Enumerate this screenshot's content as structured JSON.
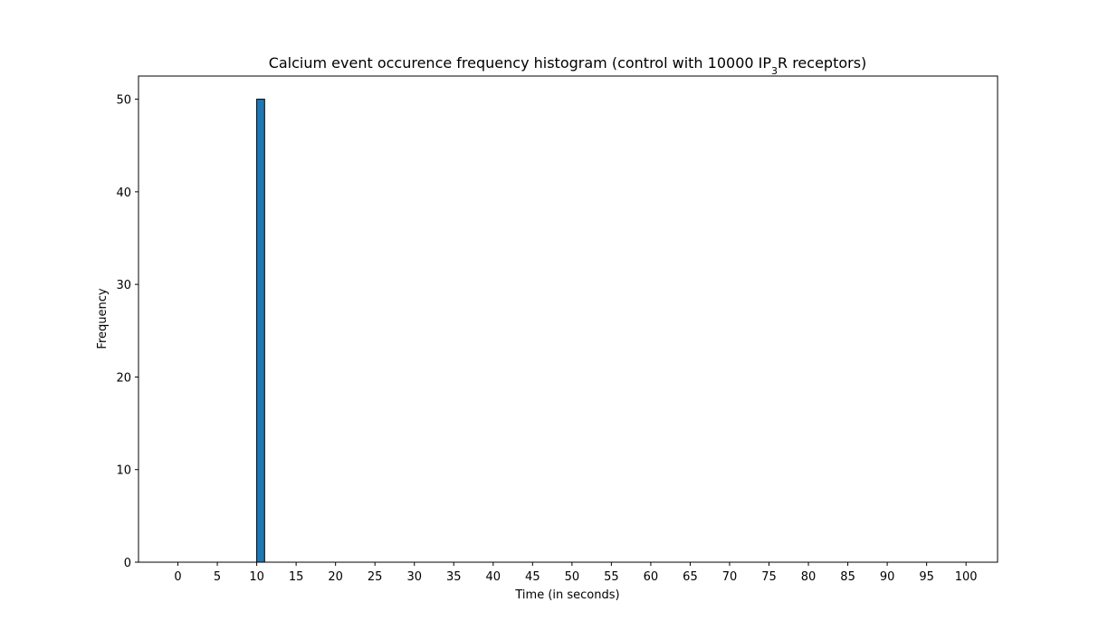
{
  "chart_data": {
    "type": "bar",
    "title_parts": [
      "Calcium event occurence frequency histogram (control with 10000 IP",
      "3",
      "R receptors)"
    ],
    "xlabel": "Time (in seconds)",
    "ylabel": "Frequency",
    "xlim": [
      -5,
      104
    ],
    "ylim": [
      0,
      52.5
    ],
    "xticks": [
      0,
      5,
      10,
      15,
      20,
      25,
      30,
      35,
      40,
      45,
      50,
      55,
      60,
      65,
      70,
      75,
      80,
      85,
      90,
      95,
      100
    ],
    "yticks": [
      0,
      10,
      20,
      30,
      40,
      50
    ],
    "grid": false,
    "bin_width": 1,
    "bins": [
      {
        "x_start": 10,
        "x_end": 11,
        "count": 50
      }
    ],
    "range": [
      0,
      99
    ],
    "bar_color": "#1f77b4",
    "edge_color": "#000000"
  }
}
